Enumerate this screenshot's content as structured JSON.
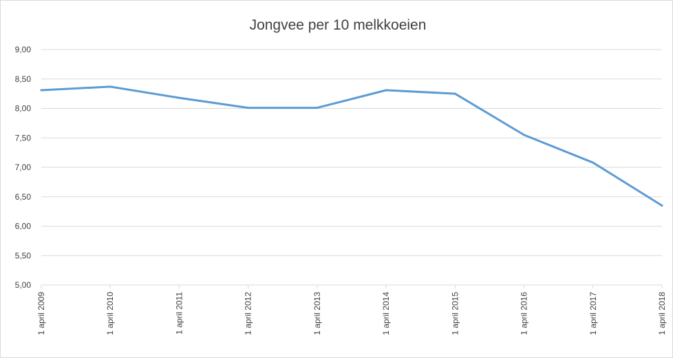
{
  "chart_data": {
    "type": "line",
    "title": "Jongvee per 10 melkkoeien",
    "xlabel": "",
    "ylabel": "",
    "categories": [
      "1 april 2009",
      "1 april 2010",
      "1 april 2011",
      "1 april 2012",
      "1 april 2013",
      "1 april 2014",
      "1 april 2015",
      "1 april 2016",
      "1 april 2017",
      "1 april 2018"
    ],
    "series": [
      {
        "values": [
          8.31,
          8.37,
          8.18,
          8.01,
          8.01,
          8.31,
          8.25,
          7.55,
          7.08,
          6.35
        ]
      }
    ],
    "ylim": [
      5.0,
      9.0
    ],
    "yticks": [
      "5,00",
      "5,50",
      "6,00",
      "6,50",
      "7,00",
      "7,50",
      "8,00",
      "8,50",
      "9,00"
    ],
    "grid": true,
    "legend": "none",
    "line_color": "#5b9bd5",
    "grid_color": "#d9d9d9"
  }
}
